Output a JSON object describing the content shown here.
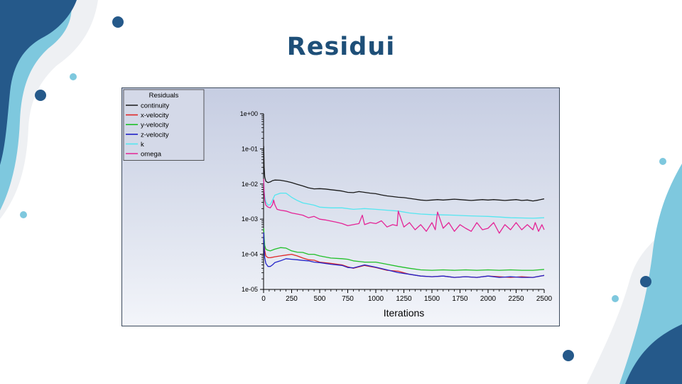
{
  "slide": {
    "title": "Residui"
  },
  "chart_data": {
    "type": "line",
    "title": "",
    "legend_title": "Residuals",
    "legend_position": "top-left",
    "xlabel": "Iterations",
    "ylabel": "",
    "xlim": [
      0,
      2500
    ],
    "ylim": [
      1e-05,
      1
    ],
    "y_scale": "log",
    "grid": false,
    "x_ticks": [
      0,
      250,
      500,
      750,
      1000,
      1250,
      1500,
      1750,
      2000,
      2250,
      2500
    ],
    "x_tick_labels": [
      "0",
      "250",
      "500",
      "750",
      "1000",
      "1250",
      "1500",
      "1750",
      "2000",
      "2250",
      "2500"
    ],
    "y_ticks": [
      1e-05,
      0.0001,
      0.001,
      0.01,
      0.1,
      1
    ],
    "y_tick_labels": [
      "1e-05",
      "1e-04",
      "1e-03",
      "1e-02",
      "1e-01",
      "1e+00"
    ],
    "series": [
      {
        "name": "continuity",
        "color": "#1a1a1a",
        "x": [
          1,
          5,
          10,
          20,
          40,
          60,
          80,
          100,
          150,
          200,
          250,
          300,
          350,
          400,
          450,
          500,
          550,
          600,
          650,
          700,
          750,
          800,
          850,
          900,
          950,
          1000,
          1050,
          1100,
          1150,
          1200,
          1250,
          1300,
          1350,
          1400,
          1450,
          1500,
          1550,
          1600,
          1650,
          1700,
          1750,
          1800,
          1850,
          1900,
          1950,
          2000,
          2050,
          2100,
          2150,
          2200,
          2250,
          2300,
          2350,
          2400,
          2450,
          2500
        ],
        "y": [
          0.12,
          0.03,
          0.016,
          0.012,
          0.011,
          0.0115,
          0.0125,
          0.013,
          0.0128,
          0.012,
          0.011,
          0.0098,
          0.0088,
          0.0078,
          0.0073,
          0.0074,
          0.0072,
          0.0069,
          0.0066,
          0.0063,
          0.0058,
          0.0057,
          0.0061,
          0.0058,
          0.0055,
          0.0053,
          0.0049,
          0.0046,
          0.0044,
          0.0042,
          0.0041,
          0.0039,
          0.0037,
          0.0035,
          0.0034,
          0.0035,
          0.0036,
          0.0035,
          0.0036,
          0.0037,
          0.0036,
          0.0035,
          0.0034,
          0.0035,
          0.0036,
          0.0035,
          0.0036,
          0.0035,
          0.0034,
          0.0035,
          0.0036,
          0.0034,
          0.0035,
          0.0033,
          0.0035,
          0.0038
        ]
      },
      {
        "name": "x-velocity",
        "color": "#e02828",
        "x": [
          1,
          5,
          10,
          20,
          40,
          60,
          100,
          150,
          200,
          250,
          300,
          350,
          400,
          450,
          500,
          600,
          700,
          750,
          800,
          900,
          1000,
          1100,
          1200,
          1300,
          1400,
          1500,
          1600,
          1700,
          1800,
          1900,
          2000,
          2100,
          2200,
          2300,
          2400,
          2500
        ],
        "y": [
          0.00045,
          0.00025,
          0.00013,
          9e-05,
          8e-05,
          8e-05,
          8.5e-05,
          9e-05,
          9.5e-05,
          0.0001,
          9e-05,
          7.8e-05,
          7e-05,
          6.8e-05,
          6e-05,
          5.5e-05,
          5e-05,
          4.4e-05,
          4e-05,
          4.8e-05,
          4.2e-05,
          3.5e-05,
          3.3e-05,
          2.7e-05,
          2.4e-05,
          2.3e-05,
          2.4e-05,
          2.2e-05,
          2.3e-05,
          2.2e-05,
          2.4e-05,
          2.3e-05,
          2.2e-05,
          2.3e-05,
          2.2e-05,
          2.5e-05
        ]
      },
      {
        "name": "y-velocity",
        "color": "#22c02a",
        "x": [
          1,
          5,
          10,
          20,
          40,
          60,
          100,
          150,
          200,
          250,
          300,
          350,
          400,
          450,
          500,
          600,
          700,
          750,
          800,
          900,
          1000,
          1100,
          1200,
          1300,
          1400,
          1500,
          1600,
          1700,
          1800,
          1900,
          2000,
          2100,
          2200,
          2300,
          2400,
          2500
        ],
        "y": [
          0.00055,
          0.0003,
          0.00018,
          0.00014,
          0.00013,
          0.000125,
          0.00014,
          0.000155,
          0.00015,
          0.000125,
          0.000115,
          0.000113,
          0.0001,
          0.0001,
          9e-05,
          7.8e-05,
          7.5e-05,
          7.2e-05,
          6.5e-05,
          6e-05,
          6e-05,
          5.2e-05,
          4.5e-05,
          4e-05,
          3.6e-05,
          3.5e-05,
          3.6e-05,
          3.5e-05,
          3.6e-05,
          3.5e-05,
          3.6e-05,
          3.5e-05,
          3.6e-05,
          3.5e-05,
          3.5e-05,
          3.7e-05
        ]
      },
      {
        "name": "z-velocity",
        "color": "#2424c8",
        "x": [
          1,
          5,
          10,
          20,
          40,
          60,
          80,
          100,
          150,
          200,
          250,
          300,
          350,
          400,
          450,
          500,
          600,
          700,
          750,
          800,
          900,
          1000,
          1100,
          1200,
          1300,
          1400,
          1500,
          1600,
          1700,
          1800,
          1900,
          2000,
          2100,
          2200,
          2300,
          2400,
          2500
        ],
        "y": [
          0.00042,
          0.00015,
          8e-05,
          5.5e-05,
          4.5e-05,
          4.5e-05,
          5e-05,
          5.8e-05,
          6.5e-05,
          7.5e-05,
          7.2e-05,
          7e-05,
          6.7e-05,
          6.5e-05,
          6e-05,
          5.8e-05,
          5.2e-05,
          4.8e-05,
          4.2e-05,
          4.1e-05,
          5e-05,
          4.3e-05,
          3.6e-05,
          3e-05,
          2.7e-05,
          2.4e-05,
          2.3e-05,
          2.4e-05,
          2.2e-05,
          2.3e-05,
          2.2e-05,
          2.4e-05,
          2.2e-05,
          2.3e-05,
          2.2e-05,
          2.2e-05,
          2.5e-05
        ]
      },
      {
        "name": "k",
        "color": "#55e6f0",
        "x": [
          1,
          5,
          10,
          20,
          40,
          60,
          80,
          100,
          150,
          200,
          250,
          300,
          350,
          400,
          450,
          500,
          600,
          700,
          800,
          900,
          1000,
          1100,
          1200,
          1300,
          1400,
          1500,
          1600,
          1700,
          1800,
          1900,
          2000,
          2100,
          2200,
          2300,
          2400,
          2500
        ],
        "y": [
          0.012,
          0.007,
          0.0045,
          0.0031,
          0.0025,
          0.0026,
          0.0035,
          0.0048,
          0.0055,
          0.0055,
          0.0042,
          0.0034,
          0.0029,
          0.0027,
          0.0025,
          0.0022,
          0.0021,
          0.0021,
          0.0019,
          0.002,
          0.0019,
          0.0018,
          0.0017,
          0.0015,
          0.0014,
          0.00135,
          0.00132,
          0.0013,
          0.00125,
          0.00122,
          0.0012,
          0.00115,
          0.0011,
          0.00108,
          0.00106,
          0.0011
        ]
      },
      {
        "name": "omega",
        "color": "#e42496",
        "x": [
          1,
          5,
          10,
          20,
          40,
          60,
          80,
          90,
          100,
          120,
          150,
          200,
          250,
          300,
          350,
          400,
          450,
          500,
          550,
          600,
          650,
          700,
          750,
          800,
          850,
          880,
          900,
          950,
          1000,
          1050,
          1100,
          1150,
          1190,
          1200,
          1250,
          1300,
          1350,
          1400,
          1450,
          1500,
          1530,
          1550,
          1600,
          1650,
          1700,
          1750,
          1800,
          1850,
          1900,
          1950,
          2000,
          2050,
          2100,
          2150,
          2200,
          2250,
          2300,
          2350,
          2400,
          2420,
          2450,
          2480,
          2500
        ],
        "y": [
          0.014,
          0.006,
          0.0035,
          0.0025,
          0.0022,
          0.0021,
          0.0026,
          0.0035,
          0.0026,
          0.0019,
          0.0018,
          0.0017,
          0.0015,
          0.0014,
          0.0013,
          0.0011,
          0.0012,
          0.001,
          0.00095,
          0.00088,
          0.00082,
          0.00075,
          0.00065,
          0.0007,
          0.00075,
          0.0013,
          0.0007,
          0.0008,
          0.00075,
          0.0009,
          0.0006,
          0.0007,
          0.00065,
          0.0017,
          0.0006,
          0.0008,
          0.0005,
          0.0007,
          0.00045,
          0.0008,
          0.0005,
          0.0016,
          0.00055,
          0.0008,
          0.00045,
          0.0007,
          0.00055,
          0.00045,
          0.0008,
          0.0005,
          0.00055,
          0.0008,
          0.0004,
          0.0007,
          0.0005,
          0.0008,
          0.0005,
          0.0007,
          0.0005,
          0.0008,
          0.00045,
          0.0007,
          0.0005
        ]
      }
    ]
  }
}
